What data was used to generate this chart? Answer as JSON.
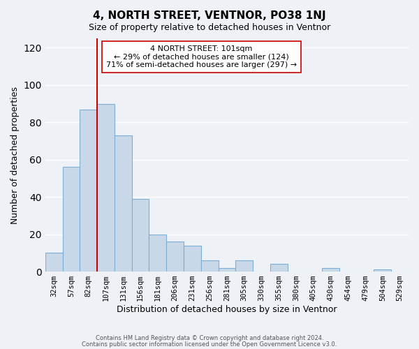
{
  "title": "4, NORTH STREET, VENTNOR, PO38 1NJ",
  "subtitle": "Size of property relative to detached houses in Ventnor",
  "xlabel": "Distribution of detached houses by size in Ventnor",
  "ylabel": "Number of detached properties",
  "bar_labels": [
    "32sqm",
    "57sqm",
    "82sqm",
    "107sqm",
    "131sqm",
    "156sqm",
    "181sqm",
    "206sqm",
    "231sqm",
    "256sqm",
    "281sqm",
    "305sqm",
    "330sqm",
    "355sqm",
    "380sqm",
    "405sqm",
    "430sqm",
    "454sqm",
    "479sqm",
    "504sqm",
    "529sqm"
  ],
  "bar_values": [
    10,
    56,
    87,
    90,
    73,
    39,
    20,
    16,
    14,
    6,
    2,
    6,
    0,
    4,
    0,
    0,
    2,
    0,
    0,
    1,
    0
  ],
  "bar_color": "#c8d8e8",
  "bar_edge_color": "#7bafd4",
  "vline_index": 3,
  "vline_color": "#cc0000",
  "ylim": [
    0,
    125
  ],
  "yticks": [
    0,
    20,
    40,
    60,
    80,
    100,
    120
  ],
  "annotation_title": "4 NORTH STREET: 101sqm",
  "annotation_line1": "← 29% of detached houses are smaller (124)",
  "annotation_line2": "71% of semi-detached houses are larger (297) →",
  "footer_line1": "Contains HM Land Registry data © Crown copyright and database right 2024.",
  "footer_line2": "Contains public sector information licensed under the Open Government Licence v3.0.",
  "background_color": "#eef2f7",
  "plot_bg_color": "#eef2f7",
  "grid_color": "#ffffff"
}
